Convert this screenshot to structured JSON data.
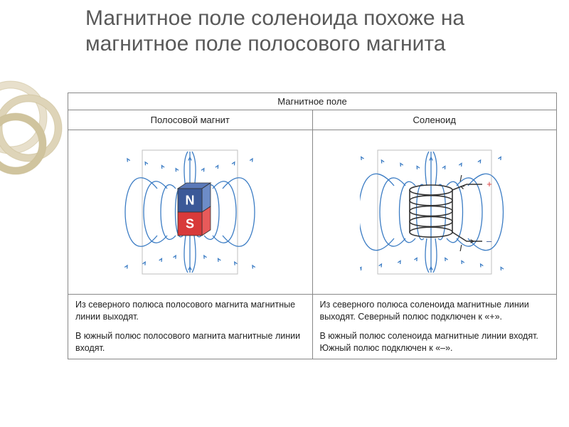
{
  "title": "Магнитное поле соленоида похоже на магнитное поле полосового магнита",
  "table": {
    "header": "Магнитное поле",
    "left_title": "Полосовой магнит",
    "right_title": "Соленоид",
    "left_caption1": "Из северного полюса полосового магнита магнитные линии выходят.",
    "left_caption2": "В южный полюс полосового магнита магнитные линии входят.",
    "right_caption1": "Из северного полюса соленоида магнитные линии выходят. Северный полюс подключен к «+».",
    "right_caption2": "В южный полюс соленоида магнитные линии входят. Южный полюс подключен к «–»."
  },
  "decoration": {
    "ring_colors": [
      "#e8e0cc",
      "#ded4b8",
      "#d0c49e"
    ],
    "ring_stroke": "#c8ba8e",
    "ring_stroke_width": 1
  },
  "bar_magnet": {
    "field_line_color": "#3b7cc4",
    "field_line_width": 1.3,
    "arrow_color": "#3b7cc4",
    "n_face_color": "#3b5998",
    "n_top_color": "#5b79b8",
    "side_top_color": "#6d8cc8",
    "s_face_color": "#d83a3a",
    "side_bottom_color": "#e85a5a",
    "n_label": "N",
    "s_label": "S",
    "label_color": "#ffffff",
    "label_fontsize": 18,
    "edge_color": "#333333",
    "background_color": "#ffffff",
    "figure_border": "#bfbfbf"
  },
  "solenoid": {
    "field_line_color": "#3b7cc4",
    "field_line_width": 1.3,
    "arrow_color": "#3b7cc4",
    "coil_color": "#333333",
    "coil_width": 1.6,
    "wire_color": "#333333",
    "plus_label": "+",
    "minus_label": "–",
    "i_label": "I",
    "plus_color": "#d83a3a",
    "minus_color": "#3b5998",
    "label_fontsize": 13,
    "figure_border": "#bfbfbf",
    "background_color": "#ffffff",
    "num_turns": 5
  }
}
